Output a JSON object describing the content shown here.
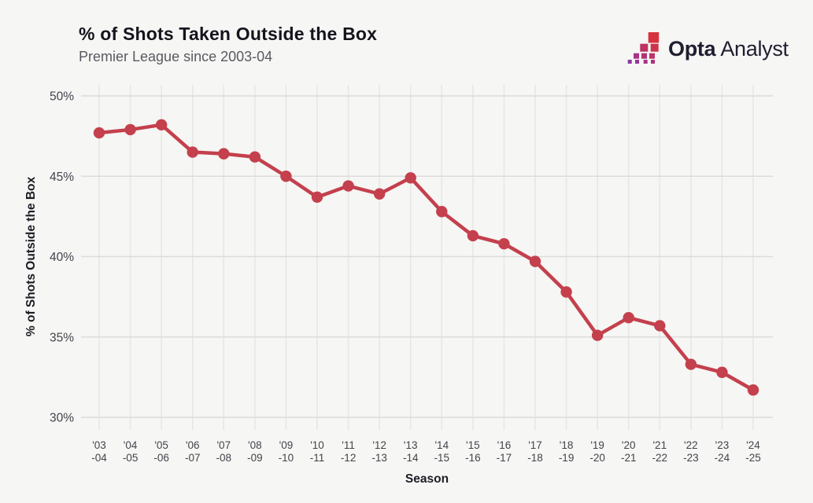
{
  "header": {
    "title": "% of Shots Taken Outside the Box",
    "subtitle": "Premier League since 2003-04"
  },
  "logo": {
    "brand_bold": "Opta",
    "brand_light": "Analyst",
    "mark_colors": [
      [
        "#d5333d"
      ],
      [
        "#bd3361",
        "#cb344c"
      ],
      [
        "#a83388",
        "#b13378",
        "#bc3366"
      ],
      [
        "#8f35a3",
        "#993496",
        "#a53389",
        "#b0337b"
      ]
    ]
  },
  "chart_data": {
    "type": "line",
    "title": "% of Shots Taken Outside the Box",
    "subtitle": "Premier League since 2003-04",
    "xlabel": "Season",
    "ylabel": "% of Shots Outside the Box",
    "ylim": [
      30,
      50
    ],
    "yticks": [
      50,
      45,
      40,
      35,
      30
    ],
    "ytick_labels": [
      "50%",
      "45%",
      "40%",
      "35%",
      "30%"
    ],
    "categories": [
      [
        "'03",
        "-04"
      ],
      [
        "'04",
        "-05"
      ],
      [
        "'05",
        "-06"
      ],
      [
        "'06",
        "-07"
      ],
      [
        "'07",
        "-08"
      ],
      [
        "'08",
        "-09"
      ],
      [
        "'09",
        "-10"
      ],
      [
        "'10",
        "-11"
      ],
      [
        "'11",
        "-12"
      ],
      [
        "'12",
        "-13"
      ],
      [
        "'13",
        "-14"
      ],
      [
        "'14",
        "-15"
      ],
      [
        "'15",
        "-16"
      ],
      [
        "'16",
        "-17"
      ],
      [
        "'17",
        "-18"
      ],
      [
        "'18",
        "-19"
      ],
      [
        "'19",
        "-20"
      ],
      [
        "'20",
        "-21"
      ],
      [
        "'21",
        "-22"
      ],
      [
        "'22",
        "-23"
      ],
      [
        "'23",
        "-24"
      ],
      [
        "'24",
        "-25"
      ]
    ],
    "values": [
      47.7,
      47.9,
      48.2,
      46.5,
      46.4,
      46.2,
      45.0,
      43.7,
      44.4,
      43.9,
      44.9,
      42.8,
      41.3,
      40.8,
      39.7,
      37.8,
      35.1,
      36.2,
      35.7,
      33.3,
      32.8,
      31.7
    ],
    "grid": true,
    "legend": false,
    "line_color": "#c4404d",
    "marker_color": "#c4404d",
    "grid_color_h": "#dcdcdc",
    "grid_color_v": "#e6e6e4",
    "tick_color": "#43434c",
    "axis_title_color": "#1c1b25",
    "background": "#f6f6f4"
  }
}
